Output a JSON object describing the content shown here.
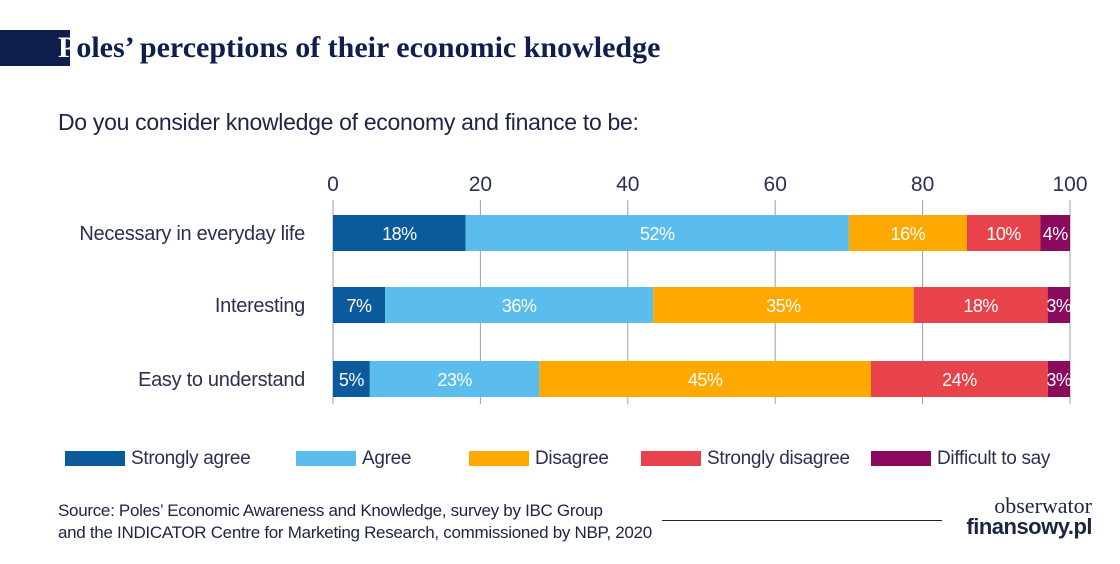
{
  "header": {
    "title_first": "P",
    "title_rest": "oles’ perceptions of their economic knowledge",
    "subtitle": "Do you consider knowledge of economy and finance to be:"
  },
  "colors": {
    "strongly_agree": "#0a5a9c",
    "agree": "#5bbdee",
    "disagree": "#ffa800",
    "strongly_disagree": "#e8424a",
    "difficult": "#8a0a5c"
  },
  "chart_data": {
    "type": "bar",
    "orientation": "horizontal",
    "stacked": true,
    "categories": [
      "Necessary in everyday life",
      "Interesting",
      "Easy to understand"
    ],
    "series": [
      {
        "name": "Strongly agree",
        "values": [
          18,
          7,
          5
        ],
        "labels": [
          "18%",
          "7%",
          "5%"
        ]
      },
      {
        "name": "Agree",
        "values": [
          52,
          36,
          23
        ],
        "labels": [
          "52%",
          "36%",
          "23%"
        ]
      },
      {
        "name": "Disagree",
        "values": [
          16,
          35,
          45
        ],
        "labels": [
          "16%",
          "35%",
          "45%"
        ]
      },
      {
        "name": "Strongly disagree",
        "values": [
          10,
          18,
          24
        ],
        "labels": [
          "10%",
          "18%",
          "24%"
        ]
      },
      {
        "name": "Difficult to say",
        "values": [
          4,
          3,
          3
        ],
        "labels": [
          "4%",
          "3%",
          "3%"
        ]
      }
    ],
    "xlim": [
      0,
      100
    ],
    "xticks": [
      0,
      20,
      40,
      60,
      80,
      100
    ],
    "grid": true,
    "legend_position": "bottom"
  },
  "legend": [
    {
      "label": "Strongly agree",
      "color": "#0a5a9c"
    },
    {
      "label": "Agree",
      "color": "#5bbdee"
    },
    {
      "label": "Disagree",
      "color": "#ffa800"
    },
    {
      "label": "Strongly disagree",
      "color": "#e8424a"
    },
    {
      "label": "Difficult to say",
      "color": "#8a0a5c"
    }
  ],
  "footer": {
    "source_line1": "Source: Poles’ Economic Awareness and Knowledge, survey by IBC Group",
    "source_line2": "and the INDICATOR Centre for Marketing Research, commissioned by NBP, 2020",
    "logo_top": "obserwator",
    "logo_bottom": "finansowy.pl"
  }
}
